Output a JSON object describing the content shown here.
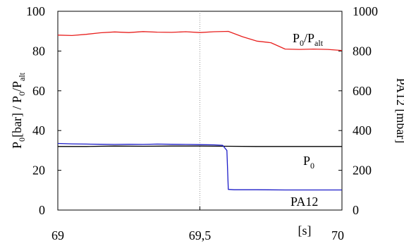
{
  "chart_data": {
    "type": "line",
    "xlabel": "[s]",
    "ylabel_left": "P0[bar] / P0/Palt",
    "ylabel_right": "PA12 [mbar]",
    "xlim": [
      69,
      70
    ],
    "ylim_left": [
      0,
      100
    ],
    "ylim_right": [
      0,
      1000
    ],
    "grid": "dotted vertical line at x = 69,5",
    "x_ticks": [
      "69",
      "69,5",
      "70"
    ],
    "y_ticks_left": [
      "0",
      "20",
      "40",
      "60",
      "80",
      "100"
    ],
    "y_ticks_right": [
      "0",
      "200",
      "400",
      "600",
      "800",
      "1000"
    ],
    "series": [
      {
        "name": "P0/Palt",
        "axis": "left",
        "color": "#e8201e",
        "x": [
          69.0,
          69.05,
          69.1,
          69.15,
          69.2,
          69.25,
          69.3,
          69.35,
          69.4,
          69.45,
          69.5,
          69.55,
          69.6,
          69.65,
          69.7,
          69.75,
          69.8,
          69.85,
          69.9,
          69.95,
          70.0
        ],
        "values": [
          88,
          87.8,
          88.4,
          89.2,
          89.6,
          89.3,
          89.8,
          89.5,
          89.4,
          89.7,
          89.3,
          89.7,
          89.9,
          87.2,
          85.0,
          84.2,
          81.0,
          80.8,
          81.0,
          80.8,
          80.3
        ]
      },
      {
        "name": "P0",
        "axis": "left",
        "color": "#000000",
        "x": [
          69.0,
          69.1,
          69.2,
          69.3,
          69.4,
          69.5,
          69.6,
          69.7,
          69.8,
          69.9,
          70.0
        ],
        "values": [
          32.0,
          32.0,
          32.2,
          32.1,
          32.2,
          32.2,
          32.1,
          32.0,
          32.0,
          32.0,
          32.0
        ]
      },
      {
        "name": "PA12",
        "axis": "right",
        "color": "#1c1cc8",
        "x": [
          69.0,
          69.05,
          69.1,
          69.15,
          69.2,
          69.25,
          69.3,
          69.35,
          69.4,
          69.45,
          69.5,
          69.55,
          69.58,
          69.595,
          69.6,
          69.62,
          69.7,
          69.8,
          69.9,
          70.0
        ],
        "values": [
          335,
          333,
          332,
          331,
          330,
          331,
          330,
          332,
          331,
          330,
          329,
          328,
          326,
          300,
          104,
          102,
          102,
          101,
          101,
          101
        ]
      }
    ]
  },
  "legend": {
    "palt": {
      "main": "P",
      "sub1": "0",
      "mid": "/P",
      "sub2": "alt"
    },
    "p0": {
      "main": "P",
      "sub": "0"
    },
    "pa12": "PA12"
  },
  "axis_titles": {
    "left": {
      "p1": "P",
      "s1": "0",
      "p2": "[bar] / P",
      "s2": "0",
      "p3": "/P",
      "s3": "alt"
    },
    "right": "PA12 [mbar]",
    "x": "[s]"
  }
}
